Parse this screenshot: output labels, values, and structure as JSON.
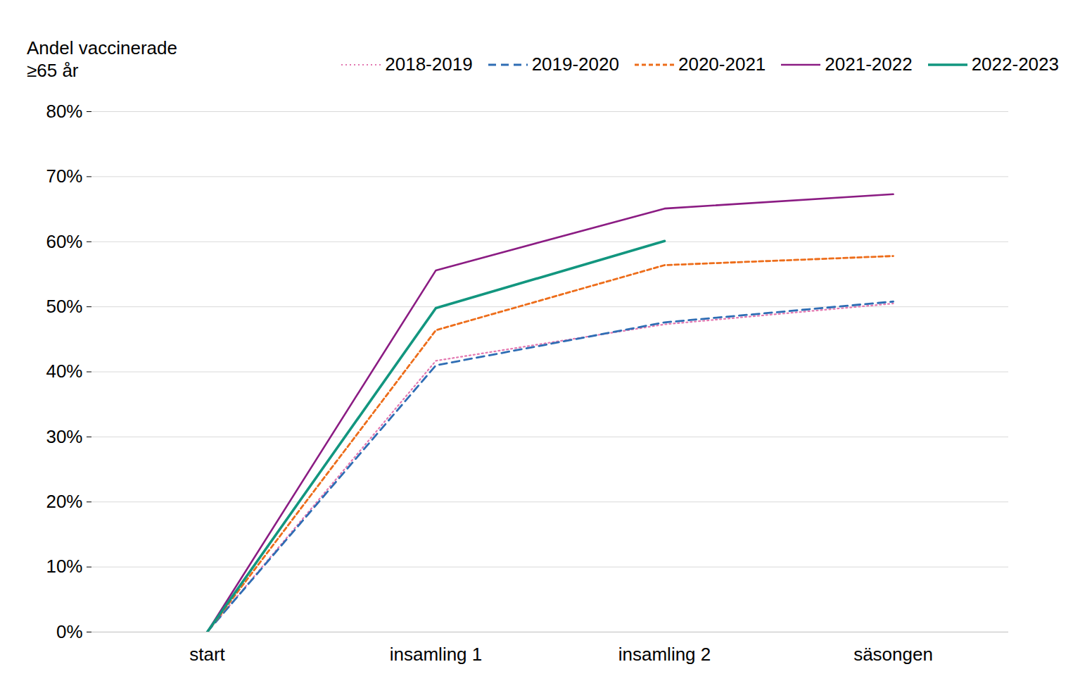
{
  "chart_data": {
    "type": "line",
    "ylabel": "Andel vaccinerade\n≥65 år",
    "categories": [
      "start",
      "insamling 1",
      "insamling 2",
      "säsongen"
    ],
    "series": [
      {
        "name": "2018-2019",
        "color": "#e377b0",
        "line_style": "dotted",
        "values": [
          0,
          41.7,
          47.3,
          50.5
        ]
      },
      {
        "name": "2019-2020",
        "color": "#2e6db4",
        "line_style": "dashed",
        "values": [
          0,
          41.0,
          47.6,
          50.8
        ]
      },
      {
        "name": "2020-2021",
        "color": "#ed6d1a",
        "line_style": "short-dashed",
        "values": [
          0,
          46.4,
          56.4,
          57.8
        ]
      },
      {
        "name": "2021-2022",
        "color": "#8b1c83",
        "line_style": "solid",
        "values": [
          0,
          55.6,
          65.1,
          67.3
        ]
      },
      {
        "name": "2022-2023",
        "color": "#12967f",
        "line_style": "solid",
        "values": [
          0,
          49.8,
          60.1,
          null
        ]
      }
    ],
    "ylim": [
      0,
      80
    ],
    "yticks": [
      {
        "value": 0,
        "label": "0%"
      },
      {
        "value": 10,
        "label": "10%"
      },
      {
        "value": 20,
        "label": "20%"
      },
      {
        "value": 30,
        "label": "30%"
      },
      {
        "value": 40,
        "label": "40%"
      },
      {
        "value": 50,
        "label": "50%"
      },
      {
        "value": 60,
        "label": "60%"
      },
      {
        "value": 70,
        "label": "70%"
      },
      {
        "value": 80,
        "label": "80%"
      }
    ],
    "grid": true,
    "legend": "top-right"
  }
}
